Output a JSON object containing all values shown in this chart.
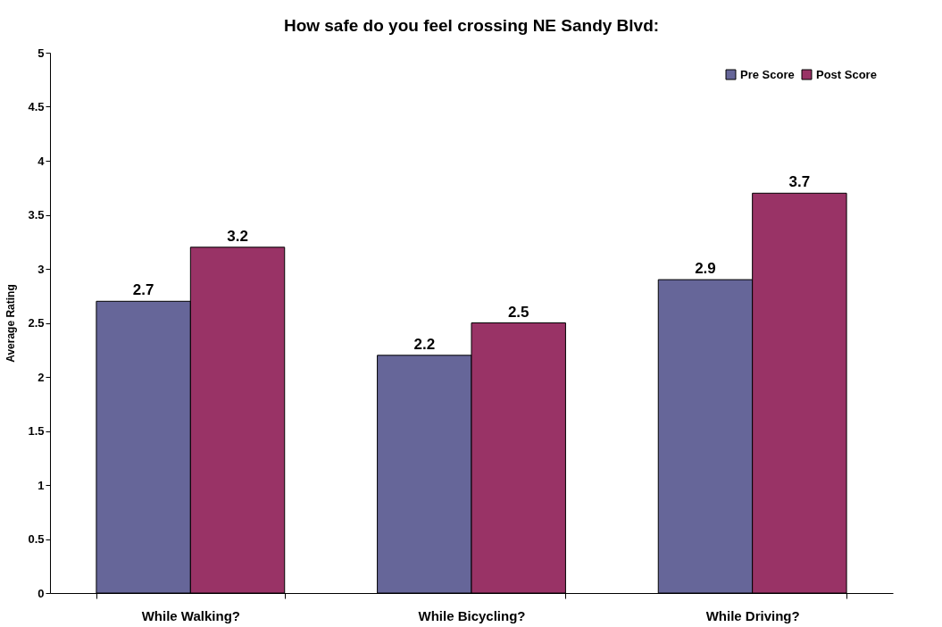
{
  "chart_data": {
    "type": "bar",
    "title": "How safe do you feel crossing NE Sandy Blvd:",
    "ylabel": "Average Rating",
    "categories": [
      "While Walking?",
      "While Bicycling?",
      "While Driving?"
    ],
    "series": [
      {
        "name": "Pre Score",
        "color": "#666699",
        "values": [
          2.7,
          2.2,
          2.9
        ]
      },
      {
        "name": "Post Score",
        "color": "#993366",
        "values": [
          3.2,
          2.5,
          3.7
        ]
      }
    ],
    "ylim": [
      0,
      5
    ],
    "yticks": [
      0,
      0.5,
      1,
      1.5,
      2,
      2.5,
      3,
      3.5,
      4,
      4.5,
      5
    ],
    "grid": false,
    "legend": "top right",
    "data_labels": true
  }
}
